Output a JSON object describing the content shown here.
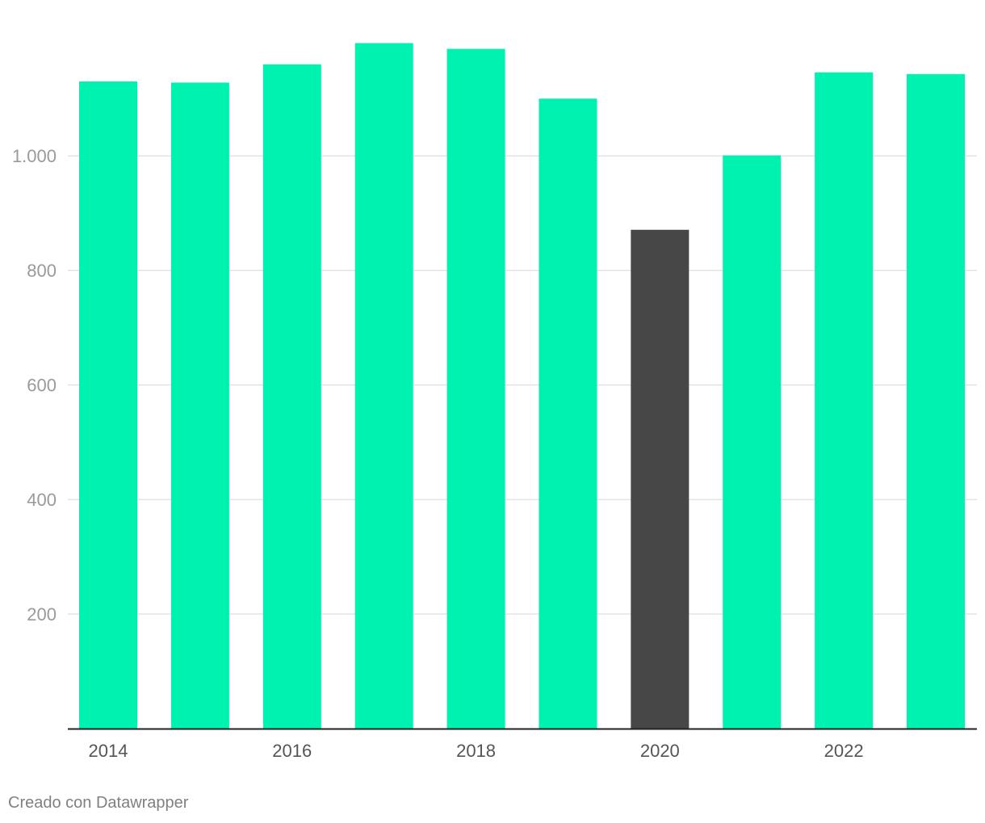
{
  "chart_data": {
    "type": "bar",
    "categories": [
      "2014",
      "2015",
      "2016",
      "2017",
      "2018",
      "2019",
      "2020",
      "2021",
      "2022",
      "2023"
    ],
    "values": [
      1130,
      1128,
      1160,
      1197,
      1187,
      1100,
      871,
      1001,
      1146,
      1143
    ],
    "highlight_index": 6,
    "x_tick_labels": [
      "2014",
      "2016",
      "2018",
      "2020",
      "2022"
    ],
    "y_ticks": [
      200,
      400,
      600,
      800,
      1000
    ],
    "y_tick_labels": [
      "200",
      "400",
      "600",
      "800",
      "1.000"
    ],
    "ylim": [
      0,
      1230
    ],
    "grid": true,
    "title": "",
    "xlabel": "",
    "ylabel": "",
    "colors": {
      "bar": "#00f2b0",
      "highlight": "#474747",
      "grid": "#e3e3e3",
      "axis": "#222222"
    }
  },
  "credit": "Creado con Datawrapper"
}
